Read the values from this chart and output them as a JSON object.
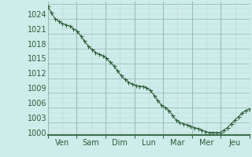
{
  "background_color": "#ceecea",
  "grid_color_major": "#b8d4d0",
  "grid_color_dark": "#9abcb8",
  "line_color": "#2d5e3a",
  "marker_color": "#2d5e3a",
  "axis_label_color": "#2d5e3a",
  "axis_line_color": "#3a6e48",
  "ylim": [
    999.5,
    1026.5
  ],
  "yticks": [
    1000,
    1003,
    1006,
    1009,
    1012,
    1015,
    1018,
    1021,
    1024
  ],
  "day_labels": [
    "Ven",
    "Sam",
    "Dim",
    "Lun",
    "Mar",
    "Mer",
    "Jeu"
  ],
  "num_days": 7,
  "points_per_day": 8,
  "values": [
    1025.5,
    1024.2,
    1023.0,
    1022.5,
    1022.0,
    1021.8,
    1021.5,
    1021.0,
    1020.5,
    1019.5,
    1018.5,
    1017.5,
    1016.8,
    1016.2,
    1015.8,
    1015.5,
    1015.0,
    1014.2,
    1013.5,
    1012.5,
    1011.5,
    1010.8,
    1010.2,
    1009.8,
    1009.5,
    1009.4,
    1009.3,
    1009.0,
    1008.5,
    1007.5,
    1006.5,
    1005.5,
    1005.0,
    1004.5,
    1003.5,
    1002.5,
    1002.0,
    1001.8,
    1001.5,
    1001.2,
    1001.0,
    1000.8,
    1000.5,
    1000.2,
    1000.0,
    1000.0,
    1000.0,
    1000.0,
    1000.5,
    1001.0,
    1001.8,
    1002.5,
    1003.2,
    1004.0,
    1004.5,
    1004.8
  ],
  "font_size": 7,
  "marker_size": 2.0,
  "linewidth": 0.8
}
